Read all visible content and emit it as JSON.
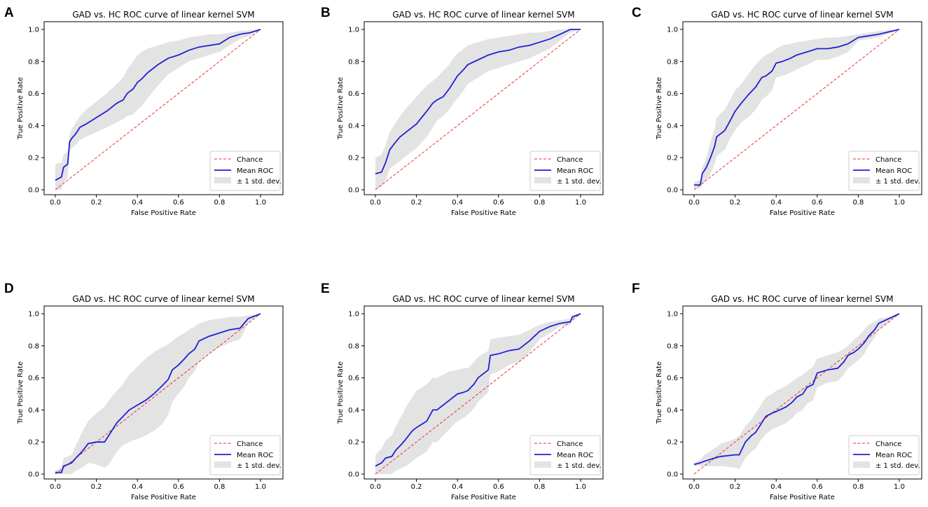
{
  "colors": {
    "chance": "#e8312d",
    "mean_roc": "#1f1fd6",
    "band": "#e3e3e3",
    "axis": "#000000"
  },
  "chart_data": [
    {
      "panel": "A",
      "type": "line",
      "title": "GAD vs. HC ROC curve of linear kernel SVM",
      "xlabel": "False Positive Rate",
      "ylabel": "True Positive Rate",
      "xlim": [
        0,
        1
      ],
      "ylim": [
        0,
        1
      ],
      "ticks": [
        "0.0",
        "0.2",
        "0.4",
        "0.6",
        "0.8",
        "1.0"
      ],
      "legend": {
        "position": "lower right",
        "entries": [
          "Chance",
          "Mean ROC",
          "± 1 std. dev."
        ]
      },
      "chance": {
        "x": [
          0,
          1
        ],
        "y": [
          0,
          1
        ]
      },
      "mean_roc": {
        "x": [
          0,
          0.03,
          0.04,
          0.06,
          0.07,
          0.08,
          0.1,
          0.12,
          0.15,
          0.2,
          0.25,
          0.3,
          0.33,
          0.35,
          0.38,
          0.4,
          0.42,
          0.45,
          0.5,
          0.55,
          0.6,
          0.65,
          0.7,
          0.75,
          0.8,
          0.85,
          0.9,
          0.95,
          1.0
        ],
        "y": [
          0.06,
          0.08,
          0.14,
          0.16,
          0.3,
          0.32,
          0.35,
          0.39,
          0.41,
          0.45,
          0.49,
          0.54,
          0.56,
          0.6,
          0.63,
          0.67,
          0.69,
          0.73,
          0.78,
          0.82,
          0.84,
          0.87,
          0.89,
          0.9,
          0.91,
          0.95,
          0.97,
          0.98,
          1.0
        ]
      },
      "upper": [
        0.16,
        0.17,
        0.22,
        0.24,
        0.35,
        0.38,
        0.42,
        0.46,
        0.5,
        0.55,
        0.6,
        0.66,
        0.7,
        0.75,
        0.8,
        0.84,
        0.86,
        0.88,
        0.9,
        0.92,
        0.93,
        0.95,
        0.96,
        0.97,
        0.97,
        0.98,
        0.99,
        0.995,
        1.0
      ],
      "lower": [
        0.0,
        0.0,
        0.04,
        0.08,
        0.24,
        0.26,
        0.28,
        0.31,
        0.33,
        0.36,
        0.39,
        0.42,
        0.44,
        0.46,
        0.47,
        0.5,
        0.52,
        0.57,
        0.65,
        0.72,
        0.76,
        0.8,
        0.82,
        0.84,
        0.86,
        0.9,
        0.94,
        0.96,
        1.0
      ]
    },
    {
      "panel": "B",
      "type": "line",
      "title": "GAD vs. HC ROC curve of linear kernel SVM",
      "xlabel": "False Positive Rate",
      "ylabel": "True Positive Rate",
      "xlim": [
        0,
        1
      ],
      "ylim": [
        0,
        1
      ],
      "ticks": [
        "0.0",
        "0.2",
        "0.4",
        "0.6",
        "0.8",
        "1.0"
      ],
      "legend": {
        "position": "lower right",
        "entries": [
          "Chance",
          "Mean ROC",
          "± 1 std. dev."
        ]
      },
      "chance": {
        "x": [
          0,
          1
        ],
        "y": [
          0,
          1
        ]
      },
      "mean_roc": {
        "x": [
          0,
          0.03,
          0.05,
          0.07,
          0.1,
          0.12,
          0.15,
          0.18,
          0.2,
          0.25,
          0.28,
          0.3,
          0.33,
          0.36,
          0.38,
          0.4,
          0.43,
          0.45,
          0.5,
          0.55,
          0.6,
          0.65,
          0.7,
          0.75,
          0.8,
          0.85,
          0.9,
          0.95,
          1.0
        ],
        "y": [
          0.1,
          0.11,
          0.17,
          0.25,
          0.3,
          0.33,
          0.36,
          0.39,
          0.41,
          0.49,
          0.54,
          0.56,
          0.58,
          0.63,
          0.67,
          0.71,
          0.75,
          0.78,
          0.81,
          0.84,
          0.86,
          0.87,
          0.89,
          0.9,
          0.92,
          0.94,
          0.97,
          1.0,
          1.0
        ]
      },
      "upper": [
        0.2,
        0.22,
        0.28,
        0.36,
        0.42,
        0.46,
        0.51,
        0.55,
        0.58,
        0.65,
        0.68,
        0.7,
        0.74,
        0.78,
        0.82,
        0.85,
        0.88,
        0.9,
        0.92,
        0.94,
        0.95,
        0.96,
        0.97,
        0.98,
        0.98,
        0.99,
        1.0,
        1.0,
        1.0
      ],
      "lower": [
        0.0,
        0.02,
        0.06,
        0.13,
        0.16,
        0.18,
        0.21,
        0.24,
        0.26,
        0.33,
        0.39,
        0.43,
        0.46,
        0.5,
        0.54,
        0.57,
        0.62,
        0.66,
        0.7,
        0.74,
        0.76,
        0.78,
        0.8,
        0.82,
        0.85,
        0.88,
        0.93,
        0.98,
        1.0
      ]
    },
    {
      "panel": "C",
      "type": "line",
      "title": "GAD vs. HC ROC curve of linear kernel SVM",
      "xlabel": "False Positive Rate",
      "ylabel": "True Positive Rate",
      "xlim": [
        0,
        1
      ],
      "ylim": [
        0,
        1
      ],
      "ticks": [
        "0.0",
        "0.2",
        "0.4",
        "0.6",
        "0.8",
        "1.0"
      ],
      "legend": {
        "position": "lower right",
        "entries": [
          "Chance",
          "Mean ROC",
          "± 1 std. dev."
        ]
      },
      "chance": {
        "x": [
          0,
          1
        ],
        "y": [
          0,
          1
        ]
      },
      "mean_roc": {
        "x": [
          0,
          0.03,
          0.04,
          0.06,
          0.08,
          0.1,
          0.11,
          0.15,
          0.18,
          0.2,
          0.23,
          0.27,
          0.3,
          0.33,
          0.35,
          0.38,
          0.4,
          0.43,
          0.47,
          0.5,
          0.55,
          0.6,
          0.65,
          0.7,
          0.75,
          0.8,
          0.85,
          0.9,
          1.0
        ],
        "y": [
          0.03,
          0.03,
          0.1,
          0.14,
          0.2,
          0.27,
          0.33,
          0.37,
          0.44,
          0.49,
          0.54,
          0.6,
          0.64,
          0.7,
          0.71,
          0.74,
          0.79,
          0.8,
          0.82,
          0.84,
          0.86,
          0.88,
          0.88,
          0.89,
          0.91,
          0.95,
          0.96,
          0.97,
          1.0
        ]
      },
      "upper": [
        0.05,
        0.06,
        0.14,
        0.2,
        0.3,
        0.38,
        0.45,
        0.5,
        0.57,
        0.62,
        0.66,
        0.73,
        0.78,
        0.82,
        0.84,
        0.86,
        0.88,
        0.9,
        0.91,
        0.92,
        0.93,
        0.94,
        0.95,
        0.95,
        0.96,
        0.97,
        0.98,
        0.99,
        1.0
      ],
      "lower": [
        0.01,
        0.01,
        0.03,
        0.06,
        0.1,
        0.16,
        0.21,
        0.25,
        0.33,
        0.37,
        0.42,
        0.46,
        0.5,
        0.56,
        0.58,
        0.62,
        0.7,
        0.71,
        0.73,
        0.75,
        0.78,
        0.81,
        0.81,
        0.83,
        0.86,
        0.93,
        0.94,
        0.95,
        1.0
      ]
    },
    {
      "panel": "D",
      "type": "line",
      "title": "GAD vs. HC ROC curve of linear kernel SVM",
      "xlabel": "False Positive Rate",
      "ylabel": "True Positive Rate",
      "xlim": [
        0,
        1
      ],
      "ylim": [
        0,
        1
      ],
      "ticks": [
        "0.0",
        "0.2",
        "0.4",
        "0.6",
        "0.8",
        "1.0"
      ],
      "legend": {
        "position": "lower right",
        "entries": [
          "Chance",
          "Mean ROC",
          "± 1 std. dev."
        ]
      },
      "chance": {
        "x": [
          0,
          1
        ],
        "y": [
          0,
          1
        ]
      },
      "mean_roc": {
        "x": [
          0,
          0.03,
          0.04,
          0.06,
          0.08,
          0.1,
          0.13,
          0.16,
          0.2,
          0.24,
          0.26,
          0.3,
          0.33,
          0.36,
          0.4,
          0.44,
          0.48,
          0.52,
          0.55,
          0.57,
          0.6,
          0.63,
          0.65,
          0.68,
          0.7,
          0.75,
          0.8,
          0.85,
          0.9,
          0.94,
          0.96,
          1.0
        ],
        "y": [
          0.01,
          0.01,
          0.05,
          0.06,
          0.07,
          0.1,
          0.14,
          0.19,
          0.2,
          0.2,
          0.24,
          0.32,
          0.36,
          0.4,
          0.43,
          0.46,
          0.5,
          0.55,
          0.59,
          0.65,
          0.68,
          0.72,
          0.75,
          0.78,
          0.83,
          0.86,
          0.88,
          0.9,
          0.91,
          0.97,
          0.98,
          1.0
        ]
      },
      "upper": [
        0.02,
        0.04,
        0.1,
        0.11,
        0.12,
        0.18,
        0.26,
        0.33,
        0.38,
        0.42,
        0.46,
        0.52,
        0.56,
        0.62,
        0.67,
        0.72,
        0.76,
        0.79,
        0.81,
        0.83,
        0.86,
        0.88,
        0.9,
        0.92,
        0.94,
        0.96,
        0.97,
        0.98,
        0.98,
        0.99,
        0.99,
        1.0
      ],
      "lower": [
        0.0,
        0.0,
        0.0,
        0.0,
        0.0,
        0.02,
        0.04,
        0.07,
        0.06,
        0.04,
        0.06,
        0.14,
        0.18,
        0.2,
        0.22,
        0.24,
        0.27,
        0.31,
        0.37,
        0.45,
        0.5,
        0.55,
        0.6,
        0.64,
        0.7,
        0.75,
        0.79,
        0.82,
        0.84,
        0.94,
        0.96,
        1.0
      ]
    },
    {
      "panel": "E",
      "type": "line",
      "title": "GAD vs. HC ROC curve of linear kernel SVM",
      "xlabel": "False Positive Rate",
      "ylabel": "True Positive Rate",
      "xlim": [
        0,
        1
      ],
      "ylim": [
        0,
        1
      ],
      "ticks": [
        "0.0",
        "0.2",
        "0.4",
        "0.6",
        "0.8",
        "1.0"
      ],
      "legend": {
        "position": "lower right",
        "entries": [
          "Chance",
          "Mean ROC",
          "± 1 std. dev."
        ]
      },
      "chance": {
        "x": [
          0,
          1
        ],
        "y": [
          0,
          1
        ]
      },
      "mean_roc": {
        "x": [
          0,
          0.03,
          0.05,
          0.08,
          0.1,
          0.13,
          0.15,
          0.18,
          0.2,
          0.25,
          0.28,
          0.3,
          0.33,
          0.36,
          0.4,
          0.43,
          0.45,
          0.48,
          0.5,
          0.55,
          0.56,
          0.6,
          0.65,
          0.7,
          0.72,
          0.75,
          0.8,
          0.85,
          0.9,
          0.95,
          0.96,
          1.0
        ],
        "y": [
          0.05,
          0.07,
          0.1,
          0.11,
          0.15,
          0.19,
          0.22,
          0.27,
          0.29,
          0.33,
          0.4,
          0.4,
          0.43,
          0.46,
          0.5,
          0.51,
          0.52,
          0.56,
          0.6,
          0.65,
          0.74,
          0.75,
          0.77,
          0.78,
          0.8,
          0.83,
          0.89,
          0.92,
          0.94,
          0.95,
          0.98,
          1.0
        ]
      },
      "upper": [
        0.12,
        0.16,
        0.21,
        0.24,
        0.3,
        0.37,
        0.42,
        0.48,
        0.52,
        0.56,
        0.6,
        0.6,
        0.62,
        0.64,
        0.65,
        0.66,
        0.66,
        0.7,
        0.73,
        0.77,
        0.84,
        0.85,
        0.86,
        0.87,
        0.88,
        0.9,
        0.93,
        0.95,
        0.96,
        0.97,
        0.99,
        1.0
      ],
      "lower": [
        0.0,
        0.0,
        0.0,
        0.0,
        0.02,
        0.04,
        0.05,
        0.08,
        0.1,
        0.14,
        0.2,
        0.2,
        0.24,
        0.28,
        0.33,
        0.35,
        0.37,
        0.41,
        0.45,
        0.51,
        0.62,
        0.64,
        0.68,
        0.7,
        0.72,
        0.76,
        0.84,
        0.88,
        0.92,
        0.93,
        0.96,
        1.0
      ]
    },
    {
      "panel": "F",
      "type": "line",
      "title": "GAD vs. HC ROC curve of linear kernel SVM",
      "xlabel": "False Positive Rate",
      "ylabel": "True Positive Rate",
      "xlim": [
        0,
        1
      ],
      "ylim": [
        0,
        1
      ],
      "ticks": [
        "0.0",
        "0.2",
        "0.4",
        "0.6",
        "0.8",
        "1.0"
      ],
      "legend": {
        "position": "lower right",
        "entries": [
          "Chance",
          "Mean ROC",
          "± 1 std. dev."
        ]
      },
      "chance": {
        "x": [
          0,
          1
        ],
        "y": [
          0,
          1
        ]
      },
      "mean_roc": {
        "x": [
          0,
          0.03,
          0.05,
          0.1,
          0.13,
          0.2,
          0.22,
          0.25,
          0.28,
          0.3,
          0.33,
          0.35,
          0.38,
          0.4,
          0.45,
          0.48,
          0.5,
          0.53,
          0.55,
          0.58,
          0.6,
          0.65,
          0.7,
          0.73,
          0.75,
          0.78,
          0.8,
          0.83,
          0.85,
          0.88,
          0.9,
          0.95,
          1.0
        ],
        "y": [
          0.06,
          0.07,
          0.08,
          0.1,
          0.11,
          0.12,
          0.12,
          0.2,
          0.24,
          0.26,
          0.32,
          0.36,
          0.38,
          0.39,
          0.42,
          0.45,
          0.48,
          0.5,
          0.54,
          0.56,
          0.63,
          0.65,
          0.66,
          0.7,
          0.74,
          0.76,
          0.78,
          0.82,
          0.86,
          0.9,
          0.94,
          0.97,
          1.0
        ]
      },
      "upper": [
        0.07,
        0.09,
        0.12,
        0.16,
        0.19,
        0.22,
        0.24,
        0.3,
        0.34,
        0.38,
        0.44,
        0.48,
        0.5,
        0.52,
        0.55,
        0.58,
        0.6,
        0.62,
        0.64,
        0.67,
        0.72,
        0.74,
        0.76,
        0.78,
        0.8,
        0.84,
        0.86,
        0.9,
        0.93,
        0.95,
        0.97,
        0.98,
        1.0
      ],
      "lower": [
        0.05,
        0.05,
        0.05,
        0.05,
        0.05,
        0.04,
        0.03,
        0.1,
        0.14,
        0.16,
        0.22,
        0.25,
        0.28,
        0.29,
        0.32,
        0.35,
        0.38,
        0.4,
        0.44,
        0.46,
        0.54,
        0.57,
        0.58,
        0.62,
        0.66,
        0.69,
        0.71,
        0.75,
        0.8,
        0.85,
        0.9,
        0.95,
        1.0
      ]
    }
  ]
}
